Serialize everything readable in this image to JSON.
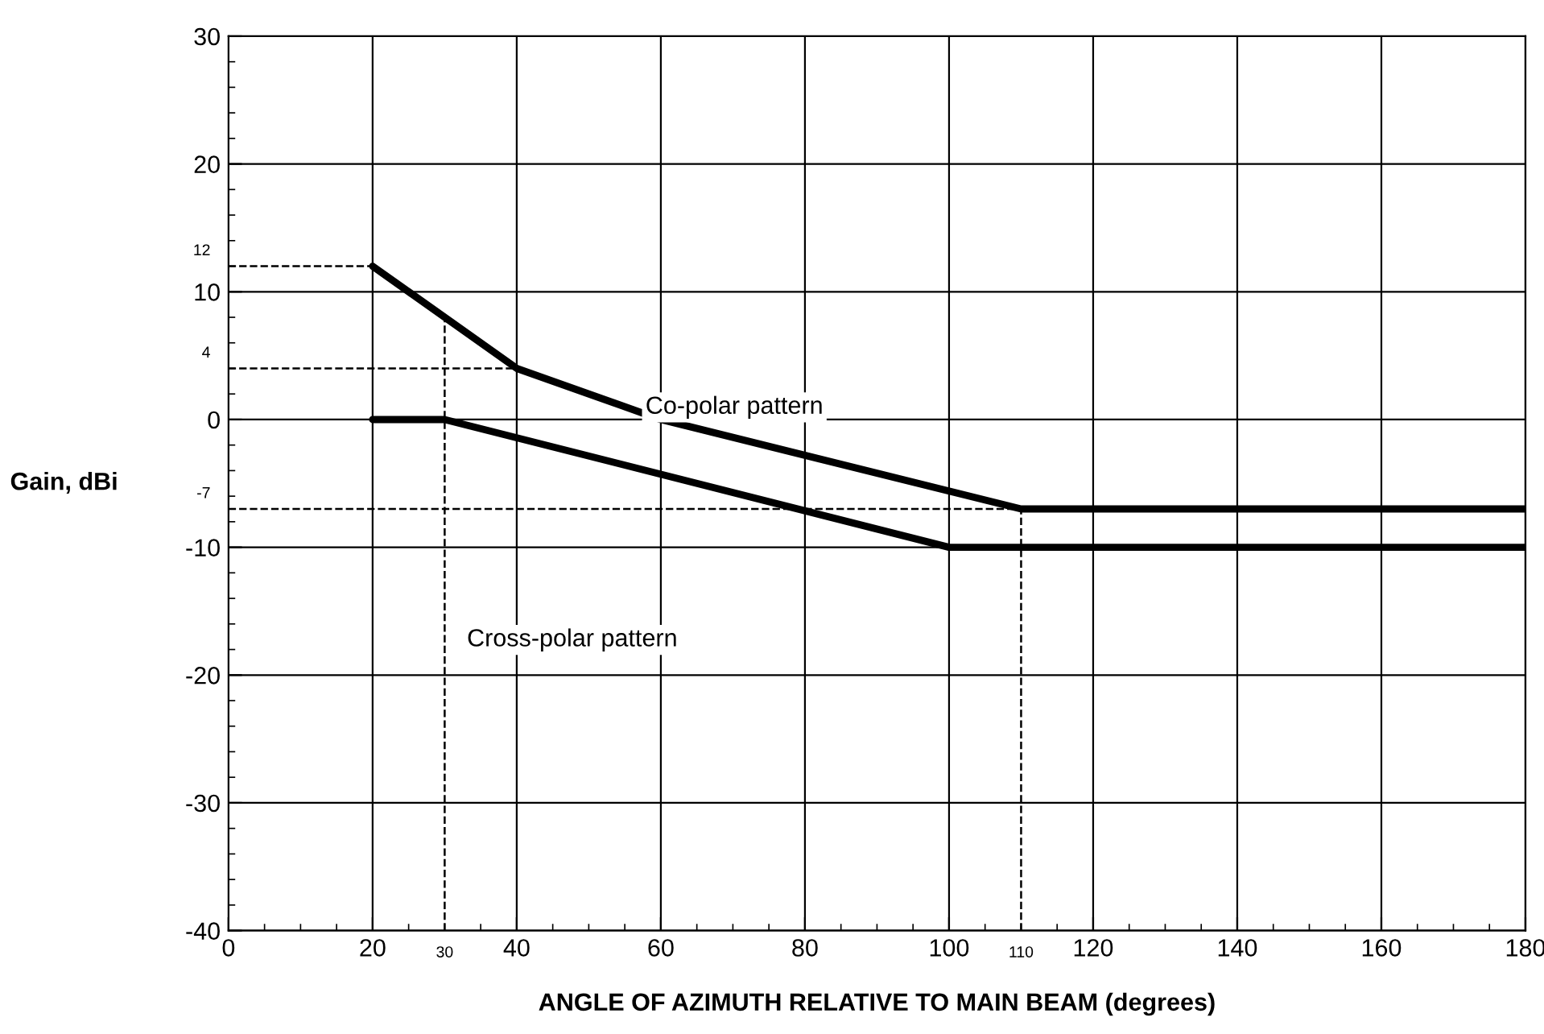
{
  "chart_data": {
    "type": "line",
    "xlabel": "ANGLE OF AZIMUTH RELATIVE TO MAIN BEAM (degrees)",
    "ylabel": "Gain, dBi",
    "series": [
      {
        "x": [
          20,
          40,
          60,
          110,
          180
        ],
        "values": [
          12,
          4,
          0,
          -7,
          -7
        ],
        "color": "#000000"
      },
      {
        "x": [
          20,
          30,
          100,
          180
        ],
        "values": [
          0,
          0,
          -10,
          -10
        ],
        "color": "#000000"
      }
    ],
    "annotations": [
      "Co-polar pattern",
      "Cross-polar pattern"
    ],
    "ref_lines": [
      {
        "axis": "y",
        "value": 12,
        "label": "12",
        "line_style": "dashed"
      },
      {
        "axis": "y",
        "value": 4,
        "label": "4",
        "line_style": "dashed"
      },
      {
        "axis": "y",
        "value": -7,
        "label": "-7",
        "line_style": "dashed"
      },
      {
        "axis": "x",
        "value": 30,
        "label": "30",
        "line_style": "dashed"
      },
      {
        "axis": "x",
        "value": 110,
        "label": "110",
        "line_style": "dashed"
      }
    ],
    "xlim": [
      0,
      180
    ],
    "ylim": [
      -40,
      30
    ],
    "xticks": [
      0,
      20,
      40,
      60,
      80,
      100,
      120,
      140,
      160,
      180
    ],
    "yticks": [
      -40,
      -30,
      -20,
      -10,
      0,
      10,
      20,
      30
    ],
    "grid": true,
    "line_style": "solid",
    "marker": "none",
    "legend": false
  }
}
